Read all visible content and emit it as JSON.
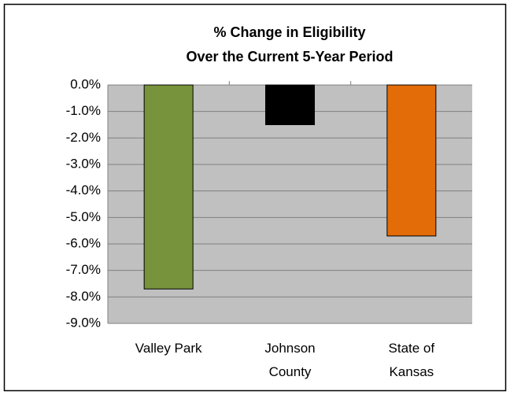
{
  "chart_data": {
    "type": "bar",
    "title": [
      "% Change in Eligibility",
      "Over the Current 5-Year Period"
    ],
    "categories": [
      "Valley Park",
      "Johnson County",
      "State of Kansas"
    ],
    "values": [
      -7.7,
      -1.5,
      -5.7
    ],
    "colors": [
      "#77933c",
      "#000000",
      "#e36c09"
    ],
    "ylim": [
      -9,
      0
    ],
    "yticks": [
      {
        "value": 0,
        "label": "0.0%"
      },
      {
        "value": -1,
        "label": "-1.0%"
      },
      {
        "value": -2,
        "label": "-2.0%"
      },
      {
        "value": -3,
        "label": "-3.0%"
      },
      {
        "value": -4,
        "label": "-4.0%"
      },
      {
        "value": -5,
        "label": "-5.0%"
      },
      {
        "value": -6,
        "label": "-6.0%"
      },
      {
        "value": -7,
        "label": "-7.0%"
      },
      {
        "value": -8,
        "label": "-8.0%"
      },
      {
        "value": -9,
        "label": "-9.0%"
      }
    ],
    "grid": true
  }
}
